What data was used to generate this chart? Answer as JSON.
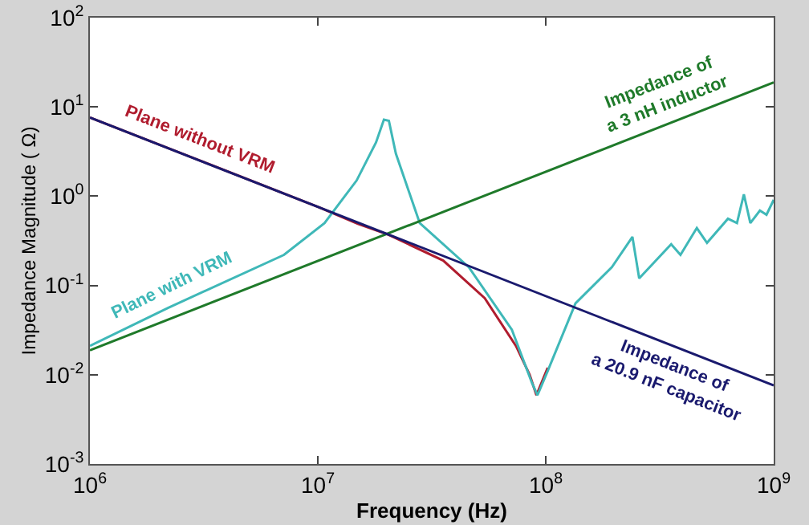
{
  "chart_data": {
    "type": "line",
    "xlabel": "Frequency (Hz)",
    "ylabel": "Impedance Magnitude ( Ω)",
    "log": "xy",
    "grid": false,
    "legend": false,
    "marker": "none",
    "line_style": "solid",
    "xlim": [
      1000000,
      1000000000
    ],
    "ylim": [
      0.001,
      100
    ],
    "xticks": [
      {
        "value": 1000000,
        "label": "10$^{6}$"
      },
      {
        "value": 10000000,
        "label": "10$^{7}$"
      },
      {
        "value": 100000000,
        "label": "10$^{8}$"
      },
      {
        "value": 1000000000,
        "label": "10$^{9}$"
      }
    ],
    "yticks": [
      {
        "value": 0.001,
        "label": "10$^{-3}$"
      },
      {
        "value": 0.01,
        "label": "10$^{-2}$"
      },
      {
        "value": 0.1,
        "label": "10$^{-1}$"
      },
      {
        "value": 1,
        "label": "10$^{0}$"
      },
      {
        "value": 10,
        "label": "10$^{1}$"
      },
      {
        "value": 100,
        "label": "10$^{2}$"
      }
    ],
    "series": [
      {
        "name": "Plane without VRM",
        "color": "#b01c2e",
        "x": [
          1000000,
          3000000,
          10000000,
          15000000,
          20400000,
          35500000,
          54000000,
          74000000,
          85000000,
          91000000,
          102000000
        ],
        "values": [
          7.6,
          2.54,
          0.76,
          0.49,
          0.37,
          0.19,
          0.072,
          0.021,
          0.01,
          0.0059,
          0.012
        ]
      },
      {
        "name": "Plane with VRM",
        "color": "#3fb8b8",
        "x": [
          1000000,
          2200000,
          7100000,
          10700000,
          14800000,
          18000000,
          19500000,
          20500000,
          22000000,
          28000000,
          46000000,
          71000000,
          87000000,
          92000000,
          102000000,
          135000000,
          195000000,
          240000000,
          257000000,
          355000000,
          390000000,
          460000000,
          510000000,
          630000000,
          690000000,
          740000000,
          790000000,
          870000000,
          930000000,
          1000000000
        ],
        "values": [
          0.021,
          0.056,
          0.22,
          0.5,
          1.5,
          4,
          7.2,
          7.0,
          3.0,
          0.5,
          0.16,
          0.032,
          0.0081,
          0.0059,
          0.011,
          0.063,
          0.16,
          0.35,
          0.12,
          0.29,
          0.22,
          0.44,
          0.3,
          0.56,
          0.5,
          1.05,
          0.5,
          0.69,
          0.62,
          0.91
        ]
      },
      {
        "name": "Impedance of\na 3 nH inductor",
        "color": "#1f7a2a",
        "x": [
          1000000,
          1000000000
        ],
        "values": [
          0.0188,
          18.8
        ]
      },
      {
        "name": "Impedance of\na 20.9 nF capacitor",
        "color": "#1a1a6e",
        "x": [
          1000000,
          1000000000
        ],
        "values": [
          7.6,
          0.0076
        ]
      }
    ]
  }
}
